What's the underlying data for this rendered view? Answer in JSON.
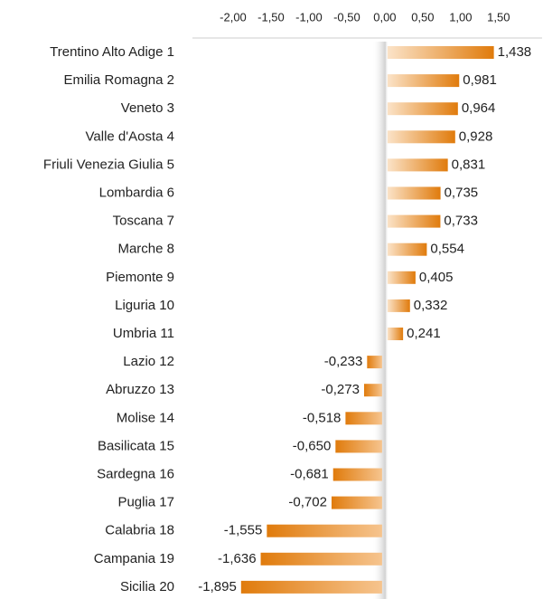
{
  "chart_data": {
    "type": "bar",
    "orientation": "horizontal",
    "categories": [
      "Trentino Alto Adige 1",
      "Emilia Romagna 2",
      "Veneto 3",
      "Valle d'Aosta 4",
      "Friuli Venezia Giulia 5",
      "Lombardia 6",
      "Toscana 7",
      "Marche 8",
      "Piemonte 9",
      "Liguria 10",
      "Umbria 11",
      "Lazio 12",
      "Abruzzo 13",
      "Molise 14",
      "Basilicata 15",
      "Sardegna 16",
      "Puglia 17",
      "Calabria 18",
      "Campania 19",
      "Sicilia 20"
    ],
    "values": [
      1.438,
      0.981,
      0.964,
      0.928,
      0.831,
      0.735,
      0.733,
      0.554,
      0.405,
      0.332,
      0.241,
      -0.233,
      -0.273,
      -0.518,
      -0.65,
      -0.681,
      -0.702,
      -1.555,
      -1.636,
      -1.895
    ],
    "value_labels": [
      "1,438",
      "0,981",
      "0,964",
      "0,928",
      "0,831",
      "0,735",
      "0,733",
      "0,554",
      "0,405",
      "0,332",
      "0,241",
      "-0,233",
      "-0,273",
      "-0,518",
      "-0,650",
      "-0,681",
      "-0,702",
      "-1,555",
      "-1,636",
      "-1,895"
    ],
    "color": "#e07b0c",
    "xlim": [
      -2.25,
      2.05
    ],
    "xticks": [
      {
        "value": -2,
        "label": "-2,00"
      },
      {
        "value": -1.5,
        "label": "-1,50"
      },
      {
        "value": -1,
        "label": "-1,00"
      },
      {
        "value": -0.5,
        "label": "-0,50"
      },
      {
        "value": 0,
        "label": "0,00"
      },
      {
        "value": 0.5,
        "label": "0,50"
      },
      {
        "value": 1,
        "label": "1,00"
      },
      {
        "value": 1.5,
        "label": "1,50"
      }
    ]
  }
}
